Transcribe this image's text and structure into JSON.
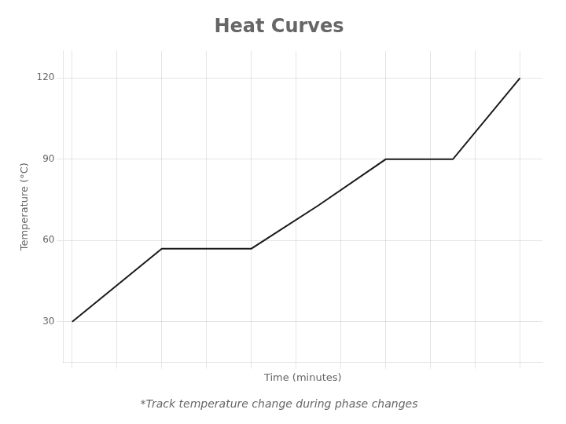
{
  "chart_data": {
    "type": "line",
    "title": "Heat Curves",
    "subtitle": "*Track temperature change during phase changes",
    "xlabel": "Time (minutes)",
    "ylabel": "Temperature (°C)",
    "x": [
      0,
      2,
      4,
      5.5,
      7,
      8.5,
      10
    ],
    "values": [
      30,
      57,
      57,
      73,
      90,
      90,
      120
    ],
    "color": "#1a1a1a",
    "xlim": [
      -0.2,
      10.5
    ],
    "xticks": [
      0,
      1,
      2,
      3,
      4,
      5,
      6,
      7,
      8,
      9,
      10
    ],
    "ylim": [
      15,
      130
    ],
    "yticks": [
      30,
      60,
      90,
      120
    ],
    "grid": true,
    "tick_labels": "y"
  }
}
